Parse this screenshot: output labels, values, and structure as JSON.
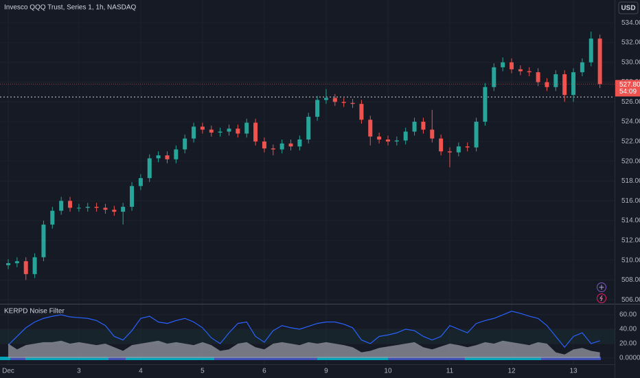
{
  "header": {
    "title": "Invesco QQQ Trust, Series 1, 1h, NASDAQ",
    "currency": "USD"
  },
  "chart_data": [
    {
      "type": "candlestick",
      "up_color": "#26a69a",
      "down_color": "#ef5350",
      "categories": [
        "Dec",
        null,
        null,
        null,
        null,
        null,
        null,
        null,
        "3",
        null,
        null,
        null,
        null,
        null,
        null,
        "4",
        null,
        null,
        null,
        null,
        null,
        null,
        "5",
        null,
        null,
        null,
        null,
        null,
        null,
        "6",
        null,
        null,
        null,
        null,
        null,
        null,
        "9",
        null,
        null,
        null,
        null,
        null,
        null,
        "10",
        null,
        null,
        null,
        null,
        null,
        null,
        "11",
        null,
        null,
        null,
        null,
        null,
        null,
        "12",
        null,
        null,
        null,
        null,
        null,
        null,
        "13",
        null,
        null,
        null
      ],
      "open": [
        509.5,
        509.7,
        509.9,
        508.6,
        510.3,
        513.6,
        515.0,
        516.0,
        515.3,
        515.3,
        515.4,
        515.3,
        515.1,
        514.9,
        515.4,
        517.5,
        518.3,
        520.3,
        520.6,
        520.2,
        521.2,
        522.3,
        523.5,
        523.2,
        522.9,
        523.0,
        523.3,
        522.8,
        523.9,
        522.0,
        521.3,
        521.2,
        521.8,
        521.5,
        522.2,
        524.5,
        526.2,
        526.4,
        526.0,
        525.9,
        525.8,
        524.2,
        522.5,
        522.2,
        522.0,
        522.1,
        523.0,
        524.0,
        523.2,
        522.3,
        521.0,
        520.9,
        521.5,
        521.4,
        524.0,
        527.5,
        529.5,
        530.0,
        529.3,
        529.1,
        529.0,
        528.0,
        527.5,
        528.8,
        526.7,
        529.0,
        530.0,
        532.4
      ],
      "high": [
        510.1,
        510.3,
        510.3,
        510.7,
        514.0,
        515.4,
        516.4,
        516.4,
        515.7,
        515.8,
        515.8,
        515.7,
        515.5,
        515.8,
        517.9,
        518.7,
        520.7,
        521.0,
        521.0,
        521.6,
        522.7,
        523.9,
        523.9,
        523.6,
        523.4,
        523.7,
        523.7,
        524.3,
        524.3,
        522.4,
        521.7,
        522.2,
        522.2,
        522.6,
        524.9,
        526.6,
        527.3,
        526.8,
        526.4,
        526.3,
        526.2,
        524.6,
        522.9,
        522.6,
        522.5,
        523.4,
        524.4,
        524.4,
        525.2,
        522.7,
        521.4,
        521.9,
        521.9,
        524.4,
        527.9,
        529.9,
        530.5,
        530.4,
        529.7,
        529.5,
        529.4,
        528.4,
        529.2,
        529.2,
        529.4,
        530.4,
        533.1,
        532.8
      ],
      "low": [
        509.1,
        509.3,
        508.0,
        508.2,
        509.9,
        513.2,
        514.6,
        514.9,
        514.9,
        514.9,
        514.9,
        514.7,
        514.5,
        513.6,
        515.0,
        517.1,
        517.9,
        519.9,
        519.8,
        519.8,
        520.8,
        521.9,
        522.8,
        522.5,
        522.5,
        522.6,
        522.4,
        522.4,
        521.6,
        520.9,
        520.6,
        520.8,
        521.1,
        521.1,
        521.8,
        524.1,
        525.8,
        525.6,
        525.5,
        525.4,
        523.8,
        521.6,
        521.8,
        521.6,
        521.6,
        521.7,
        522.6,
        522.8,
        521.9,
        520.6,
        519.4,
        520.5,
        521.0,
        521.0,
        523.6,
        527.1,
        529.1,
        528.9,
        528.7,
        528.6,
        527.6,
        527.1,
        527.1,
        526.0,
        526.0,
        528.6,
        529.6,
        527.4
      ],
      "close": [
        509.7,
        509.9,
        508.6,
        510.3,
        513.6,
        515.0,
        516.0,
        515.3,
        515.3,
        515.4,
        515.3,
        515.1,
        514.9,
        515.4,
        517.5,
        518.3,
        520.3,
        520.6,
        520.2,
        521.2,
        522.3,
        523.5,
        523.2,
        522.9,
        523.0,
        523.3,
        522.8,
        523.9,
        522.0,
        521.3,
        521.2,
        521.8,
        521.5,
        522.2,
        524.5,
        526.2,
        526.4,
        526.0,
        525.9,
        525.8,
        524.2,
        522.5,
        522.2,
        522.0,
        522.1,
        523.0,
        524.0,
        523.2,
        522.3,
        521.0,
        520.9,
        521.5,
        521.4,
        524.0,
        527.5,
        529.5,
        530.0,
        529.3,
        529.1,
        529.0,
        528.0,
        527.5,
        528.8,
        526.7,
        529.0,
        530.0,
        532.4,
        527.8
      ],
      "ylim": [
        505.6,
        536.3
      ],
      "yticks": [
        {
          "value": 506,
          "label": "506.00"
        },
        {
          "value": 508,
          "label": "508.00"
        },
        {
          "value": 510,
          "label": "510.00"
        },
        {
          "value": 512,
          "label": "512.00"
        },
        {
          "value": 514,
          "label": "514.00"
        },
        {
          "value": 516,
          "label": "516.00"
        },
        {
          "value": 518,
          "label": "518.00"
        },
        {
          "value": 520,
          "label": "520.00"
        },
        {
          "value": 522,
          "label": "522.00"
        },
        {
          "value": 524,
          "label": "524.00"
        },
        {
          "value": 526,
          "label": "526.00"
        },
        {
          "value": 528,
          "label": "528.00"
        },
        {
          "value": 530,
          "label": "530.00"
        },
        {
          "value": 532,
          "label": "532.00"
        },
        {
          "value": 534,
          "label": "534.00"
        }
      ],
      "grid": true,
      "reference_line": 526.5,
      "last_price": {
        "value": 527.8,
        "label": "527.80"
      },
      "countdown": "54:09"
    },
    {
      "type": "line",
      "title": "KERPD Noise Filter",
      "series": [
        {
          "color": "#2962ff",
          "style": "line",
          "values": [
            18,
            30,
            42,
            50,
            55,
            58,
            60,
            57,
            56,
            55,
            52,
            45,
            30,
            25,
            38,
            55,
            58,
            50,
            48,
            52,
            55,
            50,
            42,
            28,
            20,
            35,
            48,
            50,
            30,
            22,
            38,
            45,
            42,
            40,
            44,
            48,
            50,
            50,
            47,
            42,
            25,
            20,
            30,
            32,
            35,
            40,
            38,
            30,
            25,
            30,
            45,
            40,
            35,
            48,
            52,
            55,
            60,
            65,
            62,
            58,
            55,
            45,
            30,
            15,
            30,
            35,
            20,
            24
          ]
        },
        {
          "color": "#9598a1",
          "style": "area",
          "values": [
            20,
            12,
            18,
            20,
            22,
            22,
            24,
            20,
            22,
            20,
            18,
            20,
            15,
            10,
            18,
            20,
            22,
            24,
            20,
            22,
            20,
            18,
            22,
            18,
            10,
            12,
            20,
            22,
            15,
            12,
            20,
            22,
            20,
            18,
            22,
            20,
            22,
            20,
            18,
            15,
            8,
            10,
            14,
            16,
            18,
            20,
            22,
            15,
            12,
            16,
            20,
            18,
            15,
            18,
            22,
            20,
            24,
            22,
            20,
            18,
            22,
            20,
            8,
            5,
            12,
            14,
            10,
            8
          ]
        }
      ],
      "ylim": [
        -8.6,
        74.3
      ],
      "yticks": [
        {
          "value": 0,
          "label": "0.0000"
        },
        {
          "value": 20,
          "label": "20.00"
        },
        {
          "value": 40,
          "label": "40.00"
        },
        {
          "value": 60,
          "label": "60.00"
        }
      ]
    }
  ]
}
